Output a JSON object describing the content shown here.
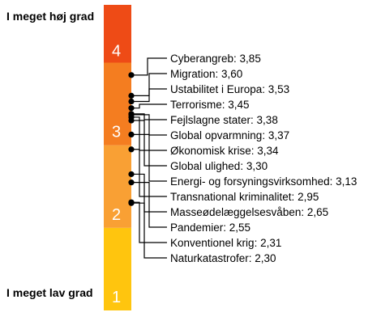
{
  "chart_data": {
    "type": "bar",
    "scale": {
      "min": 1,
      "max": 4.7
    },
    "top_label": "I meget høj grad",
    "bottom_label": "I meget lav grad",
    "segments": [
      {
        "label": "1",
        "from": 1,
        "to": 2,
        "color": "#ffc50e"
      },
      {
        "label": "2",
        "from": 2,
        "to": 3,
        "color": "#f9a034"
      },
      {
        "label": "3",
        "from": 3,
        "to": 4,
        "color": "#f47d20"
      },
      {
        "label": "4",
        "from": 4,
        "to": 4.7,
        "color": "#ee4b16"
      }
    ],
    "items": [
      {
        "name": "Cyberangreb",
        "value": 3.85,
        "display": "3,85"
      },
      {
        "name": "Migration",
        "value": 3.6,
        "display": "3,60"
      },
      {
        "name": "Ustabilitet i Europa",
        "value": 3.53,
        "display": "3,53"
      },
      {
        "name": "Terrorisme",
        "value": 3.45,
        "display": "3,45"
      },
      {
        "name": "Fejlslagne stater",
        "value": 3.38,
        "display": "3,38"
      },
      {
        "name": "Global opvarmning",
        "value": 3.37,
        "display": "3,37"
      },
      {
        "name": "Økonomisk krise",
        "value": 3.34,
        "display": "3,34"
      },
      {
        "name": "Global ulighed",
        "value": 3.3,
        "display": "3,30"
      },
      {
        "name": "Energi- og forsyningsvirksomhed",
        "value": 3.13,
        "display": "3,13"
      },
      {
        "name": "Transnational kriminalitet",
        "value": 2.95,
        "display": "2,95"
      },
      {
        "name": "Masseødelæggelsesvåben",
        "value": 2.65,
        "display": "2,65"
      },
      {
        "name": "Pandemier",
        "value": 2.55,
        "display": "2,55"
      },
      {
        "name": "Konventionel krig",
        "value": 2.31,
        "display": "2,31"
      },
      {
        "name": "Naturkatastrofer",
        "value": 2.3,
        "display": "2,30"
      }
    ]
  }
}
